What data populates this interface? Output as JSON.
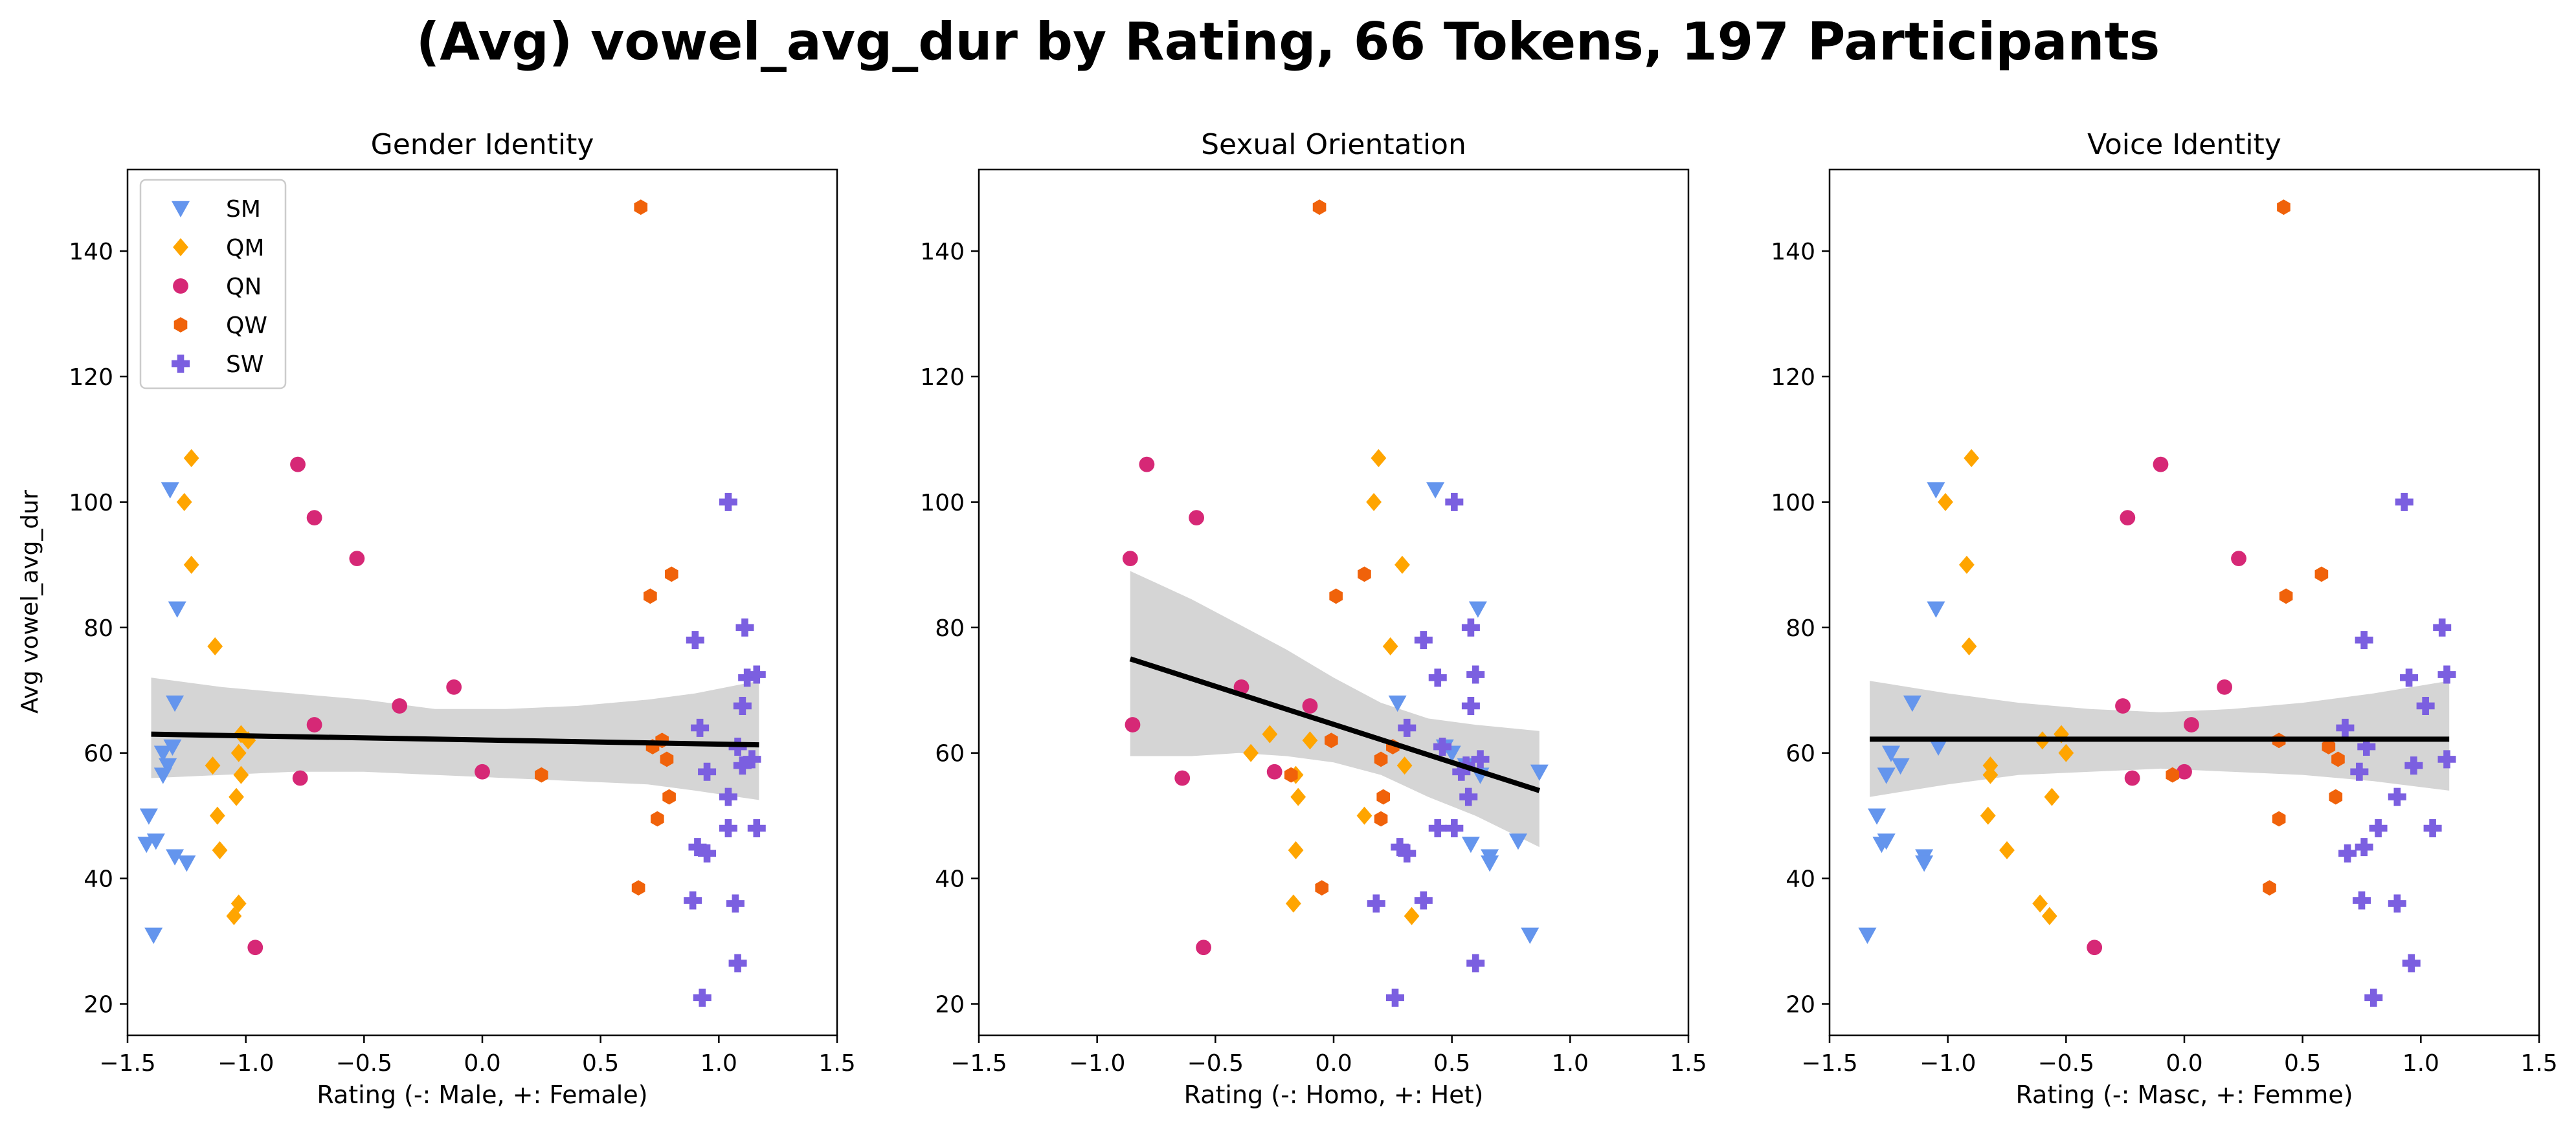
{
  "title": "(Avg) vowel_avg_dur by Rating, 66 Tokens, 197 Participants",
  "ylabel": "Avg vowel_avg_dur",
  "legend": {
    "placement": "upper-left of first panel",
    "entries": [
      {
        "label": "SM",
        "color": "#6495ed",
        "marker": "triangle-down"
      },
      {
        "label": "QM",
        "color": "#ffa500",
        "marker": "diamond"
      },
      {
        "label": "QN",
        "color": "#d62876",
        "marker": "circle"
      },
      {
        "label": "QW",
        "color": "#f0620a",
        "marker": "hexagon"
      },
      {
        "label": "SW",
        "color": "#7b5fe0",
        "marker": "plus"
      }
    ]
  },
  "chart_data": [
    {
      "type": "scatter",
      "title": "Gender Identity",
      "xlabel": "Rating (-: Male, +: Female)",
      "xlim": [
        -1.5,
        1.5
      ],
      "ylim": [
        15,
        153
      ],
      "xticks": [
        -1.5,
        -1.0,
        -0.5,
        0.0,
        0.5,
        1.0,
        1.5
      ],
      "yticks": [
        20,
        40,
        60,
        80,
        100,
        120,
        140
      ],
      "grid": false,
      "regression": {
        "x": [
          -1.4,
          1.17
        ],
        "y": [
          63,
          61.3
        ]
      },
      "ci_band": {
        "x": [
          -1.4,
          -1.1,
          -0.8,
          -0.5,
          -0.2,
          0.1,
          0.4,
          0.7,
          0.9,
          1.17
        ],
        "upper": [
          72,
          70.5,
          69.5,
          68.5,
          67,
          67,
          67.5,
          68.5,
          69.5,
          71.5
        ],
        "lower": [
          56,
          56.5,
          57,
          57,
          56.5,
          56,
          55.5,
          55,
          54,
          52.5
        ]
      },
      "series": [
        {
          "name": "SM",
          "points": [
            [
              -1.32,
              102
            ],
            [
              -1.29,
              83
            ],
            [
              -1.3,
              68
            ],
            [
              -1.35,
              60
            ],
            [
              -1.33,
              58
            ],
            [
              -1.35,
              56.5
            ],
            [
              -1.31,
              61
            ],
            [
              -1.41,
              50
            ],
            [
              -1.42,
              45.5
            ],
            [
              -1.38,
              46
            ],
            [
              -1.3,
              43.5
            ],
            [
              -1.25,
              42.5
            ],
            [
              -1.39,
              31
            ]
          ]
        },
        {
          "name": "QM",
          "points": [
            [
              -1.23,
              107
            ],
            [
              -1.26,
              100
            ],
            [
              -1.23,
              90
            ],
            [
              -1.13,
              77
            ],
            [
              -1.02,
              63
            ],
            [
              -0.99,
              62
            ],
            [
              -1.03,
              60
            ],
            [
              -1.14,
              58
            ],
            [
              -1.02,
              56.5
            ],
            [
              -1.04,
              53
            ],
            [
              -1.12,
              50
            ],
            [
              -1.11,
              44.5
            ],
            [
              -1.03,
              36
            ],
            [
              -1.05,
              34
            ]
          ]
        },
        {
          "name": "QN",
          "points": [
            [
              -0.78,
              106
            ],
            [
              -0.71,
              97.5
            ],
            [
              -0.53,
              91
            ],
            [
              -0.12,
              70.5
            ],
            [
              -0.35,
              67.5
            ],
            [
              -0.71,
              64.5
            ],
            [
              -0.77,
              56
            ],
            [
              0.0,
              57
            ],
            [
              -0.96,
              29
            ]
          ]
        },
        {
          "name": "QW",
          "points": [
            [
              0.67,
              147
            ],
            [
              0.8,
              88.5
            ],
            [
              0.71,
              85
            ],
            [
              0.76,
              62
            ],
            [
              0.72,
              61
            ],
            [
              0.78,
              59
            ],
            [
              0.25,
              56.5
            ],
            [
              0.79,
              53
            ],
            [
              0.74,
              49.5
            ],
            [
              0.66,
              38.5
            ]
          ]
        },
        {
          "name": "SW",
          "points": [
            [
              1.04,
              100
            ],
            [
              0.9,
              78
            ],
            [
              1.11,
              80
            ],
            [
              1.12,
              72
            ],
            [
              1.16,
              72.5
            ],
            [
              1.1,
              67.5
            ],
            [
              0.92,
              64
            ],
            [
              1.08,
              61
            ],
            [
              1.14,
              59
            ],
            [
              1.1,
              58
            ],
            [
              0.95,
              57
            ],
            [
              1.04,
              53
            ],
            [
              1.16,
              48
            ],
            [
              1.04,
              48
            ],
            [
              0.91,
              45
            ],
            [
              0.95,
              44
            ],
            [
              0.89,
              36.5
            ],
            [
              1.07,
              36
            ],
            [
              1.08,
              26.5
            ],
            [
              0.93,
              21
            ]
          ]
        }
      ]
    },
    {
      "type": "scatter",
      "title": "Sexual Orientation",
      "xlabel": "Rating (-: Homo, +: Het)",
      "xlim": [
        -1.5,
        1.5
      ],
      "ylim": [
        15,
        153
      ],
      "xticks": [
        -1.5,
        -1.0,
        -0.5,
        0.0,
        0.5,
        1.0,
        1.5
      ],
      "yticks": [
        20,
        40,
        60,
        80,
        100,
        120,
        140
      ],
      "grid": false,
      "regression": {
        "x": [
          -0.86,
          0.87
        ],
        "y": [
          75,
          54
        ]
      },
      "ci_band": {
        "x": [
          -0.86,
          -0.6,
          -0.4,
          -0.2,
          0.0,
          0.2,
          0.4,
          0.6,
          0.87
        ],
        "upper": [
          89,
          84.5,
          80.5,
          76.5,
          72,
          68,
          65.5,
          64.5,
          63.5
        ],
        "lower": [
          59.5,
          59.5,
          60,
          59.5,
          58.5,
          56.5,
          53,
          50,
          45
        ]
      },
      "series": [
        {
          "name": "SM",
          "points": [
            [
              0.43,
              102
            ],
            [
              0.61,
              83
            ],
            [
              0.27,
              68
            ],
            [
              0.5,
              60
            ],
            [
              0.56,
              58
            ],
            [
              0.62,
              56.5
            ],
            [
              0.47,
              61
            ],
            [
              0.87,
              57
            ],
            [
              0.58,
              45.5
            ],
            [
              0.78,
              46
            ],
            [
              0.66,
              43.5
            ],
            [
              0.66,
              42.5
            ],
            [
              0.83,
              31
            ]
          ]
        },
        {
          "name": "QM",
          "points": [
            [
              0.19,
              107
            ],
            [
              0.17,
              100
            ],
            [
              0.29,
              90
            ],
            [
              0.24,
              77
            ],
            [
              -0.27,
              63
            ],
            [
              -0.1,
              62
            ],
            [
              -0.35,
              60
            ],
            [
              0.3,
              58
            ],
            [
              -0.16,
              56.5
            ],
            [
              -0.15,
              53
            ],
            [
              0.13,
              50
            ],
            [
              -0.16,
              44.5
            ],
            [
              -0.17,
              36
            ],
            [
              0.33,
              34
            ]
          ]
        },
        {
          "name": "QN",
          "points": [
            [
              -0.79,
              106
            ],
            [
              -0.58,
              97.5
            ],
            [
              -0.86,
              91
            ],
            [
              -0.39,
              70.5
            ],
            [
              -0.1,
              67.5
            ],
            [
              -0.85,
              64.5
            ],
            [
              -0.64,
              56
            ],
            [
              -0.25,
              57
            ],
            [
              -0.55,
              29
            ]
          ]
        },
        {
          "name": "QW",
          "points": [
            [
              -0.06,
              147
            ],
            [
              0.13,
              88.5
            ],
            [
              0.01,
              85
            ],
            [
              -0.01,
              62
            ],
            [
              0.25,
              61
            ],
            [
              0.2,
              59
            ],
            [
              -0.18,
              56.5
            ],
            [
              0.21,
              53
            ],
            [
              0.2,
              49.5
            ],
            [
              -0.05,
              38.5
            ]
          ]
        },
        {
          "name": "SW",
          "points": [
            [
              0.51,
              100
            ],
            [
              0.38,
              78
            ],
            [
              0.58,
              80
            ],
            [
              0.44,
              72
            ],
            [
              0.6,
              72.5
            ],
            [
              0.58,
              67.5
            ],
            [
              0.31,
              64
            ],
            [
              0.46,
              61
            ],
            [
              0.62,
              59
            ],
            [
              0.56,
              58
            ],
            [
              0.54,
              57
            ],
            [
              0.57,
              53
            ],
            [
              0.44,
              48
            ],
            [
              0.51,
              48
            ],
            [
              0.28,
              45
            ],
            [
              0.31,
              44
            ],
            [
              0.38,
              36.5
            ],
            [
              0.18,
              36
            ],
            [
              0.6,
              26.5
            ],
            [
              0.26,
              21
            ]
          ]
        }
      ]
    },
    {
      "type": "scatter",
      "title": "Voice Identity",
      "xlabel": "Rating (-: Masc, +: Femme)",
      "xlim": [
        -1.5,
        1.5
      ],
      "ylim": [
        15,
        153
      ],
      "xticks": [
        -1.5,
        -1.0,
        -0.5,
        0.0,
        0.5,
        1.0,
        1.5
      ],
      "yticks": [
        20,
        40,
        60,
        80,
        100,
        120,
        140
      ],
      "grid": false,
      "regression": {
        "x": [
          -1.33,
          1.12
        ],
        "y": [
          62.2,
          62.2
        ]
      },
      "ci_band": {
        "x": [
          -1.33,
          -1.0,
          -0.7,
          -0.4,
          -0.1,
          0.2,
          0.5,
          0.8,
          1.12
        ],
        "upper": [
          71.5,
          69.5,
          68,
          67,
          66.5,
          67,
          68,
          69.5,
          71.5
        ],
        "lower": [
          53,
          55,
          56.5,
          57,
          57.5,
          57,
          56.5,
          55.5,
          54
        ]
      },
      "series": [
        {
          "name": "SM",
          "points": [
            [
              -1.05,
              102
            ],
            [
              -1.05,
              83
            ],
            [
              -1.15,
              68
            ],
            [
              -1.24,
              60
            ],
            [
              -1.2,
              58
            ],
            [
              -1.26,
              56.5
            ],
            [
              -1.04,
              61
            ],
            [
              -1.3,
              50
            ],
            [
              -1.28,
              45.5
            ],
            [
              -1.26,
              46
            ],
            [
              -1.1,
              43.5
            ],
            [
              -1.1,
              42.5
            ],
            [
              -1.34,
              31
            ]
          ]
        },
        {
          "name": "QM",
          "points": [
            [
              -0.9,
              107
            ],
            [
              -1.01,
              100
            ],
            [
              -0.92,
              90
            ],
            [
              -0.91,
              77
            ],
            [
              -0.52,
              63
            ],
            [
              -0.6,
              62
            ],
            [
              -0.5,
              60
            ],
            [
              -0.82,
              58
            ],
            [
              -0.82,
              56.5
            ],
            [
              -0.56,
              53
            ],
            [
              -0.83,
              50
            ],
            [
              -0.75,
              44.5
            ],
            [
              -0.61,
              36
            ],
            [
              -0.57,
              34
            ]
          ]
        },
        {
          "name": "QN",
          "points": [
            [
              -0.1,
              106
            ],
            [
              -0.24,
              97.5
            ],
            [
              0.23,
              91
            ],
            [
              0.17,
              70.5
            ],
            [
              -0.26,
              67.5
            ],
            [
              0.03,
              64.5
            ],
            [
              -0.22,
              56
            ],
            [
              0.0,
              57
            ],
            [
              -0.38,
              29
            ]
          ]
        },
        {
          "name": "QW",
          "points": [
            [
              0.42,
              147
            ],
            [
              0.58,
              88.5
            ],
            [
              0.43,
              85
            ],
            [
              0.4,
              62
            ],
            [
              0.61,
              61
            ],
            [
              0.65,
              59
            ],
            [
              -0.05,
              56.5
            ],
            [
              0.64,
              53
            ],
            [
              0.4,
              49.5
            ],
            [
              0.36,
              38.5
            ]
          ]
        },
        {
          "name": "SW",
          "points": [
            [
              0.93,
              100
            ],
            [
              0.76,
              78
            ],
            [
              1.09,
              80
            ],
            [
              0.95,
              72
            ],
            [
              1.11,
              72.5
            ],
            [
              1.02,
              67.5
            ],
            [
              0.68,
              64
            ],
            [
              0.77,
              61
            ],
            [
              1.11,
              59
            ],
            [
              0.97,
              58
            ],
            [
              0.74,
              57
            ],
            [
              0.9,
              53
            ],
            [
              0.82,
              48
            ],
            [
              1.05,
              48
            ],
            [
              0.76,
              45
            ],
            [
              0.69,
              44
            ],
            [
              0.75,
              36.5
            ],
            [
              0.9,
              36
            ],
            [
              0.96,
              26.5
            ],
            [
              0.8,
              21
            ]
          ]
        }
      ]
    }
  ]
}
